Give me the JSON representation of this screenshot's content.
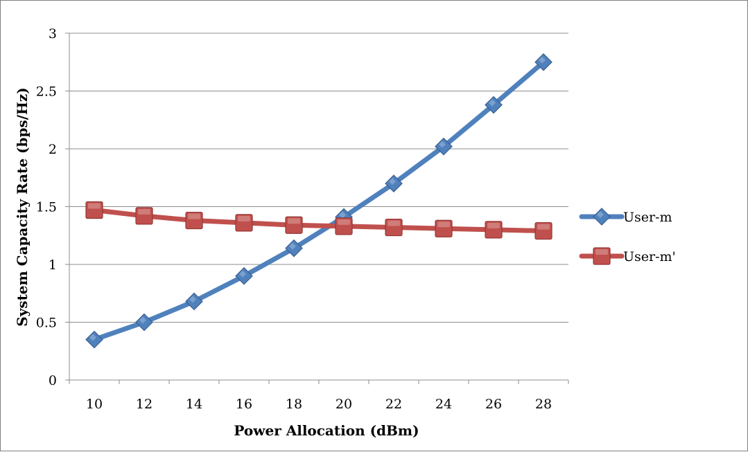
{
  "chart_data": {
    "type": "line",
    "title": "",
    "xlabel": "Power Allocation (dBm)",
    "ylabel": "System Capacity Rate (bps/Hz)",
    "categories": [
      "10",
      "12",
      "14",
      "16",
      "18",
      "20",
      "22",
      "24",
      "26",
      "28"
    ],
    "ylim": [
      0,
      3
    ],
    "yticks": [
      "0",
      "0.5",
      "1",
      "1.5",
      "2",
      "2.5",
      "3"
    ],
    "grid": "horizontal",
    "legend_position": "right",
    "series": [
      {
        "name": "User-m",
        "color": "#4f81bd",
        "marker": "diamond",
        "values": [
          0.35,
          0.5,
          0.68,
          0.9,
          1.14,
          1.41,
          1.7,
          2.02,
          2.38,
          2.75
        ]
      },
      {
        "name": "User-m'",
        "color": "#c0504d",
        "marker": "square",
        "values": [
          1.47,
          1.42,
          1.38,
          1.36,
          1.34,
          1.33,
          1.32,
          1.31,
          1.3,
          1.29
        ]
      }
    ]
  }
}
